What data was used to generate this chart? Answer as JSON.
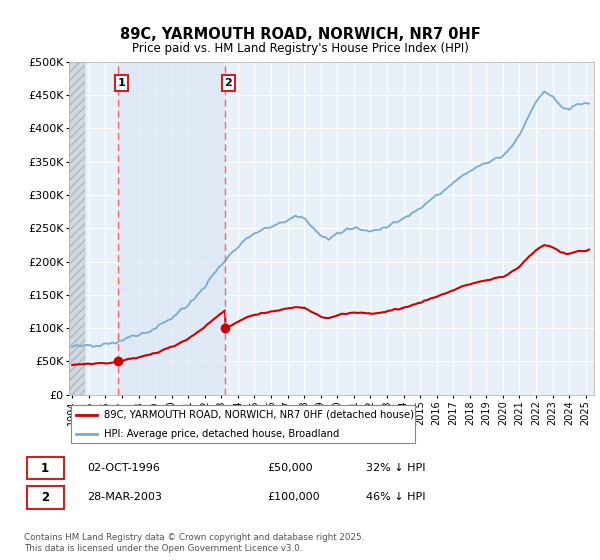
{
  "title": "89C, YARMOUTH ROAD, NORWICH, NR7 0HF",
  "subtitle": "Price paid vs. HM Land Registry's House Price Index (HPI)",
  "legend_line1": "89C, YARMOUTH ROAD, NORWICH, NR7 0HF (detached house)",
  "legend_line2": "HPI: Average price, detached house, Broadland",
  "table_row1_label": "1",
  "table_row1_date": "02-OCT-1996",
  "table_row1_price": "£50,000",
  "table_row1_hpi": "32% ↓ HPI",
  "table_row2_label": "2",
  "table_row2_date": "28-MAR-2003",
  "table_row2_price": "£100,000",
  "table_row2_hpi": "46% ↓ HPI",
  "footer": "Contains HM Land Registry data © Crown copyright and database right 2025.\nThis data is licensed under the Open Government Licence v3.0.",
  "ylim": [
    0,
    500000
  ],
  "yticks": [
    0,
    50000,
    100000,
    150000,
    200000,
    250000,
    300000,
    350000,
    400000,
    450000,
    500000
  ],
  "ytick_labels": [
    "£0",
    "£50K",
    "£100K",
    "£150K",
    "£200K",
    "£250K",
    "£300K",
    "£350K",
    "£400K",
    "£450K",
    "£500K"
  ],
  "price_color": "#cc0000",
  "hpi_color": "#7aabcf",
  "vline_color": "#ff6666",
  "purchase1_year": 1996.75,
  "purchase1_price": 50000,
  "purchase2_year": 2003.23,
  "purchase2_price": 100000,
  "xmin": 1993.8,
  "xmax": 2025.5,
  "chart_bg": "#e8f0f8",
  "hatch_end_year": 1994.75
}
